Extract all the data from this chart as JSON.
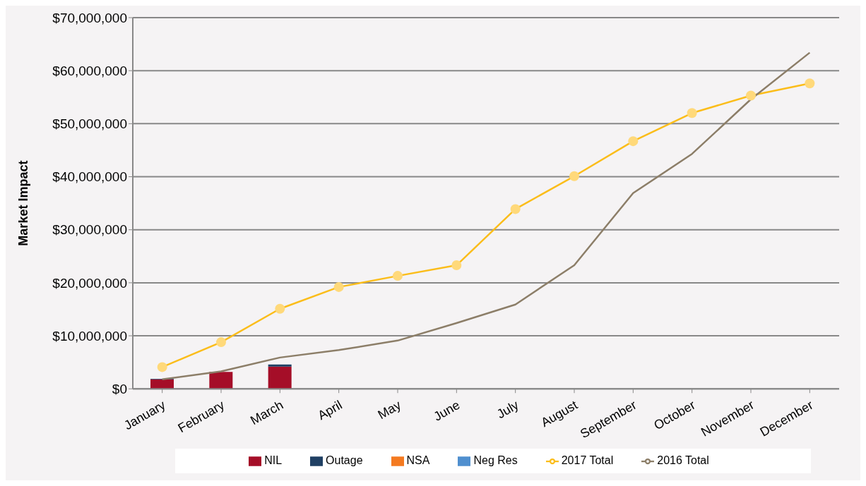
{
  "chart_data": {
    "type": "bar",
    "stacked": true,
    "ylabel": "Market Impact",
    "categories": [
      "January",
      "February",
      "March",
      "April",
      "May",
      "June",
      "July",
      "August",
      "September",
      "October",
      "November",
      "December"
    ],
    "series": [
      {
        "name": "NIL",
        "color": "#a50e28",
        "values": [
          1800000.0,
          3200000.0,
          4200000.0,
          null,
          null,
          null,
          null,
          null,
          null,
          null,
          null,
          null
        ]
      },
      {
        "name": "Outage",
        "color": "#1f3f63",
        "values": [
          100000.0,
          null,
          400000.0,
          null,
          null,
          null,
          null,
          null,
          null,
          null,
          null,
          null
        ]
      },
      {
        "name": "NSA",
        "color": "#f47a20",
        "values": [
          null,
          null,
          null,
          null,
          null,
          null,
          null,
          null,
          null,
          null,
          null,
          null
        ]
      },
      {
        "name": "Neg Res",
        "color": "#4f8fcf",
        "values": [
          null,
          null,
          null,
          null,
          null,
          null,
          null,
          null,
          null,
          null,
          null,
          null
        ]
      },
      {
        "name": "2017 Total",
        "type": "line",
        "marker": "circle",
        "color": "#fbbd1a",
        "values": [
          4100000.0,
          8800000.0,
          15100000.0,
          19200000.0,
          21300000.0,
          23300000.0,
          33900000.0,
          40100000.0,
          46700000.0,
          52000000.0,
          55300000.0,
          57600000.0
        ]
      },
      {
        "name": "2016 Total",
        "type": "line",
        "marker": "none",
        "color": "#8c7e68",
        "values": [
          1800000.0,
          3300000.0,
          5900000.0,
          7300000.0,
          9100000.0,
          12400000.0,
          15900000.0,
          23300000.0,
          36900000.0,
          44300000.0,
          54600000.0,
          63400000.0
        ]
      }
    ],
    "ylim": [
      0,
      70000000
    ],
    "yticks": [
      {
        "value": 0,
        "label": "$0"
      },
      {
        "value": 10000000,
        "label": "$10,000,000"
      },
      {
        "value": 20000000,
        "label": "$20,000,000"
      },
      {
        "value": 30000000,
        "label": "$30,000,000"
      },
      {
        "value": 40000000,
        "label": "$40,000,000"
      },
      {
        "value": 50000000,
        "label": "$50,000,000"
      },
      {
        "value": 60000000,
        "label": "$60,000,000"
      },
      {
        "value": 70000000,
        "label": "$70,000,000"
      }
    ],
    "grid": "y",
    "legend": "bottom"
  }
}
